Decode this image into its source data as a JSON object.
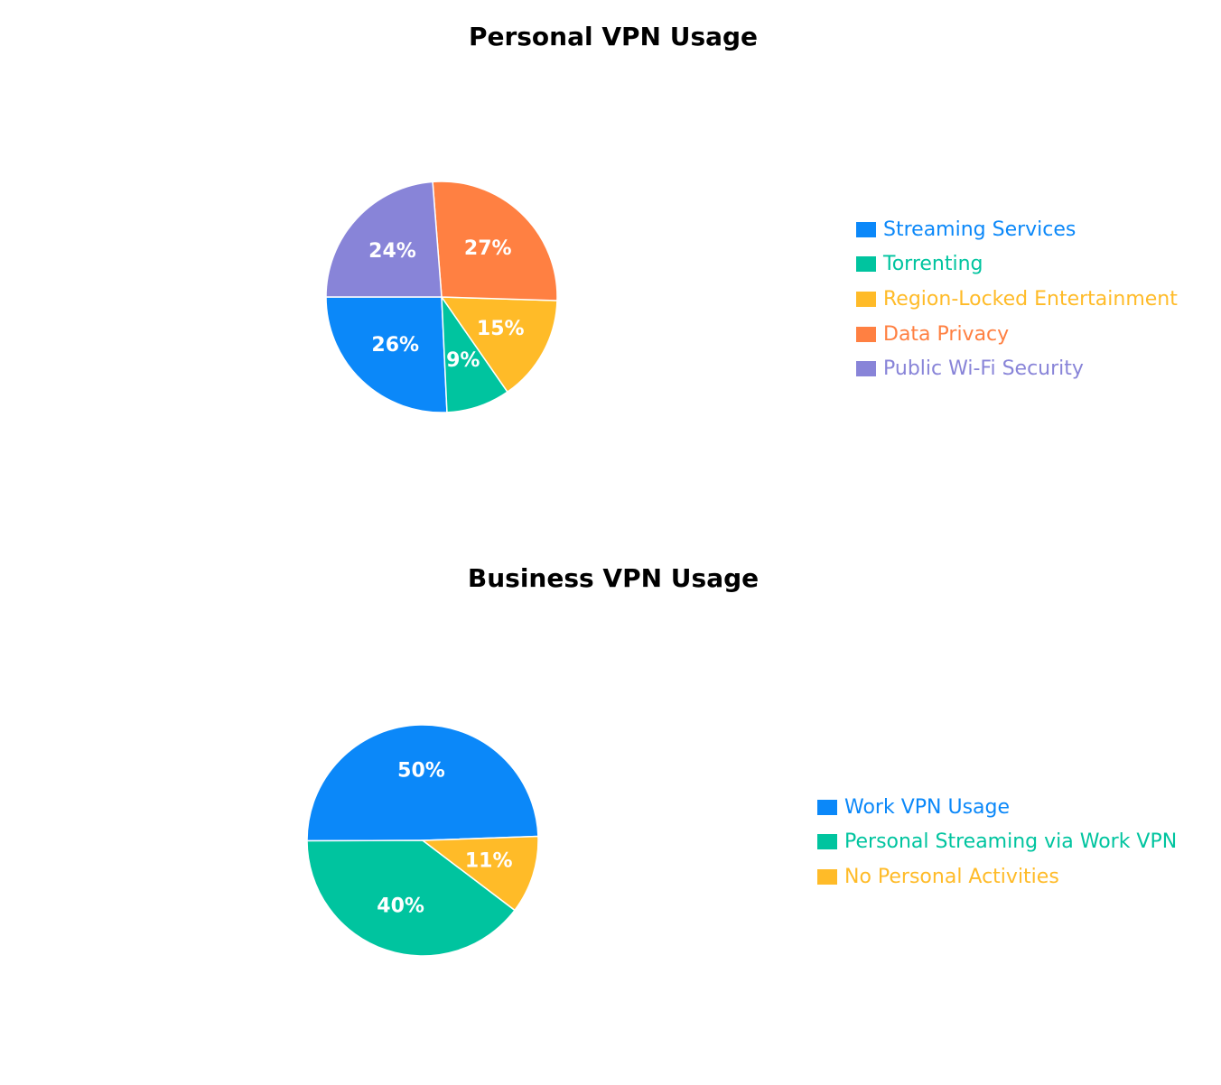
{
  "chart_data": [
    {
      "type": "pie",
      "title": "Personal VPN Usage",
      "legend_position": "right",
      "categories": [
        "Streaming Services",
        "Torrenting",
        "Region-Locked Entertainment",
        "Data Privacy",
        "Public Wi-Fi Security"
      ],
      "values": [
        26,
        9,
        15,
        27,
        24
      ],
      "labels": [
        "26%",
        "9%",
        "15%",
        "27%",
        "24%"
      ],
      "colors": [
        "#0b88f9",
        "#00c49f",
        "#ffbb28",
        "#ff8042",
        "#8884d8"
      ]
    },
    {
      "type": "pie",
      "title": "Business VPN Usage",
      "legend_position": "right",
      "categories": [
        "Work VPN Usage",
        "Personal Streaming via Work VPN",
        "No Personal Activities"
      ],
      "values": [
        50,
        40,
        11
      ],
      "labels": [
        "50%",
        "40%",
        "11%"
      ],
      "colors": [
        "#0b88f9",
        "#00c49f",
        "#ffbb28"
      ]
    }
  ]
}
